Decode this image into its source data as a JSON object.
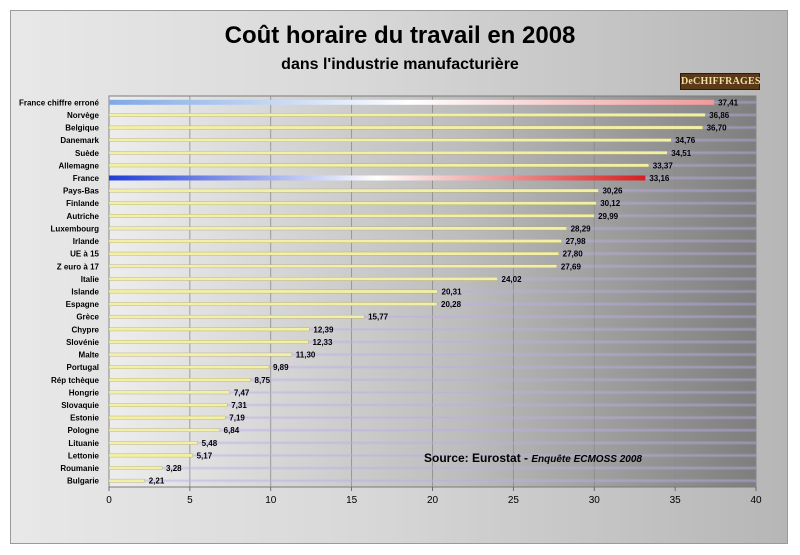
{
  "chart_data": {
    "type": "bar",
    "orientation": "horizontal",
    "title": "Coût horaire du travail en 2008",
    "subtitle": "dans l'industrie manufacturière",
    "categories": [
      "France chiffre erroné",
      "Norvège",
      "Belgique",
      "Danemark",
      "Suède",
      "Allemagne",
      "France",
      "Pays-Bas",
      "Finlande",
      "Autriche",
      "Luxembourg",
      "Irlande",
      "UE à 15",
      "Z euro à 17",
      "Italie",
      "Islande",
      "Espagne",
      "Grèce",
      "Chypre",
      "Slovénie",
      "Malte",
      "Portugal",
      "Rép tchèque",
      "Hongrie",
      "Slovaquie",
      "Estonie",
      "Pologne",
      "Lituanie",
      "Lettonie",
      "Roumanie",
      "Bulgarie"
    ],
    "values": [
      37.41,
      36.86,
      36.7,
      34.76,
      34.51,
      33.37,
      33.16,
      30.26,
      30.12,
      29.99,
      28.29,
      27.98,
      27.8,
      27.69,
      24.02,
      20.31,
      20.28,
      15.77,
      12.39,
      12.33,
      11.3,
      9.89,
      8.75,
      7.47,
      7.31,
      7.19,
      6.84,
      5.48,
      5.17,
      3.28,
      2.21
    ],
    "value_labels": [
      "37,41",
      "36,86",
      "36,70",
      "34,76",
      "34,51",
      "33,37",
      "33,16",
      "30,26",
      "30,12",
      "29,99",
      "28,29",
      "27,98",
      "27,80",
      "27,69",
      "24,02",
      "20,31",
      "20,28",
      "15,77",
      "12,39",
      "12,33",
      "11,30",
      "9,89",
      "8,75",
      "7,47",
      "7,31",
      "7,19",
      "6,84",
      "5,48",
      "5,17",
      "3,28",
      "2,21"
    ],
    "highlighted": [
      "France chiffre erroné",
      "France"
    ],
    "xlim": [
      0,
      40
    ],
    "xticks": [
      0,
      5,
      10,
      15,
      20,
      25,
      30,
      35,
      40
    ],
    "grid": true,
    "legend": "none",
    "colors": {
      "bar": "#f2efa6",
      "flag_blue": "#1f3fd6",
      "flag_white": "#ffffff",
      "flag_red": "#d81e1e",
      "flag_light_blue": "#7fa8e6",
      "flag_light_red": "#ef9a9a"
    }
  },
  "logo": "DeCHIFFRAGES",
  "source": {
    "label": "Source: Eurostat - ",
    "detail": "Enquête ECMOSS 2008"
  }
}
